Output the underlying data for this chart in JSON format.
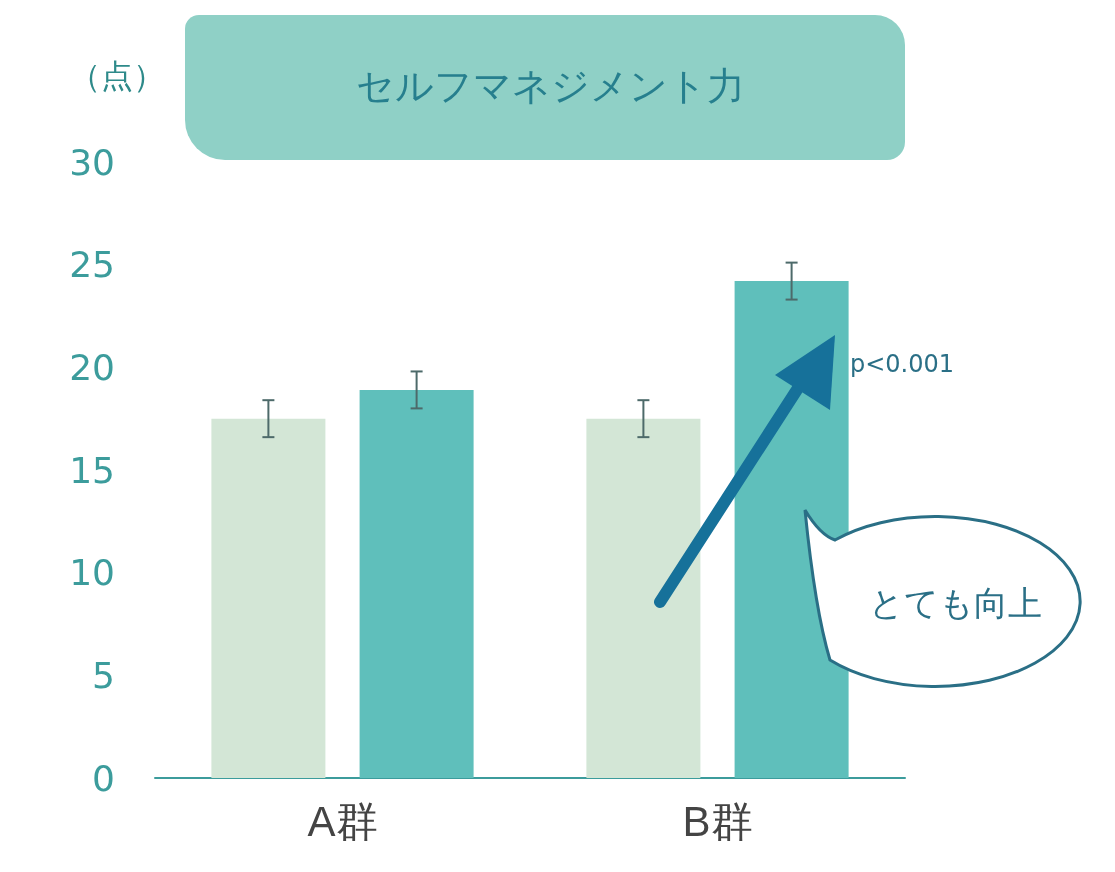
{
  "chart_data": {
    "type": "bar",
    "title": "セルフマネジメント力",
    "ylabel": "（点）",
    "categories": [
      "A群",
      "B群"
    ],
    "series": [
      {
        "color": "#d3e6d6",
        "values": [
          17.5,
          17.5
        ],
        "errors": [
          0.9,
          0.9
        ]
      },
      {
        "color": "#5fbfbb",
        "values": [
          18.9,
          24.2
        ],
        "errors": [
          0.9,
          0.9
        ]
      }
    ],
    "ylim": [
      0,
      30
    ],
    "yticks": [
      0,
      5,
      10,
      15,
      20,
      25,
      30
    ],
    "grid": false,
    "annotations": [
      "p<0.001",
      "とても向上"
    ]
  }
}
